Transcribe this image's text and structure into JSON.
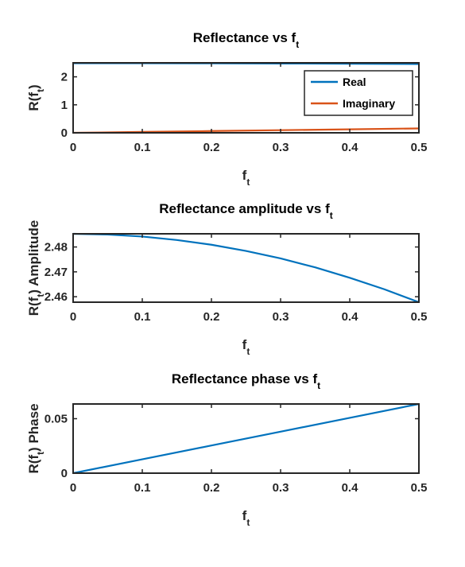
{
  "figure": {
    "background": "#ffffff",
    "axis_color": "#262626"
  },
  "chart_data": [
    {
      "type": "line",
      "title": "Reflectance vs f",
      "title_sub": "t",
      "xlabel": "f",
      "xlabel_sub": "t",
      "ylabel": "R(f",
      "ylabel_sub": "t",
      "ylabel_rest": ")",
      "xlim": [
        0,
        0.5
      ],
      "ylim": [
        0,
        2.5
      ],
      "xticks": [
        0,
        0.1,
        0.2,
        0.3,
        0.4,
        0.5
      ],
      "xtick_labels": [
        "0",
        "0.1",
        "0.2",
        "0.3",
        "0.4",
        "0.5"
      ],
      "yticks": [
        0,
        1,
        2
      ],
      "ytick_labels": [
        "0",
        "1",
        "2"
      ],
      "grid": false,
      "legend": {
        "position": "top-right"
      },
      "series": [
        {
          "name": "Real",
          "color": "#0072bd",
          "x": [
            0,
            0.1,
            0.2,
            0.3,
            0.4,
            0.5
          ],
          "y": [
            2.485,
            2.484,
            2.481,
            2.476,
            2.468,
            2.458
          ]
        },
        {
          "name": "Imaginary",
          "color": "#d95319",
          "x": [
            0,
            0.1,
            0.2,
            0.3,
            0.4,
            0.5
          ],
          "y": [
            0,
            0.031,
            0.063,
            0.094,
            0.125,
            0.157
          ]
        }
      ]
    },
    {
      "type": "line",
      "title": "Reflectance amplitude vs f",
      "title_sub": "t",
      "xlabel": "f",
      "xlabel_sub": "t",
      "ylabel": "R(f",
      "ylabel_sub": "t",
      "ylabel_rest": ") Amplitude",
      "xlim": [
        0,
        0.5
      ],
      "ylim": [
        2.4578,
        2.4853
      ],
      "xticks": [
        0,
        0.1,
        0.2,
        0.3,
        0.4,
        0.5
      ],
      "xtick_labels": [
        "0",
        "0.1",
        "0.2",
        "0.3",
        "0.4",
        "0.5"
      ],
      "yticks": [
        2.46,
        2.47,
        2.48
      ],
      "ytick_labels": [
        "2.46",
        "2.47",
        "2.48"
      ],
      "grid": false,
      "series": [
        {
          "color": "#0072bd",
          "x": [
            0,
            0.05,
            0.1,
            0.15,
            0.2,
            0.25,
            0.3,
            0.35,
            0.4,
            0.45,
            0.5
          ],
          "y": [
            2.4853,
            2.485,
            2.4842,
            2.4828,
            2.4809,
            2.4784,
            2.4754,
            2.4718,
            2.4676,
            2.463,
            2.4578
          ]
        }
      ]
    },
    {
      "type": "line",
      "title": "Reflectance phase vs f",
      "title_sub": "t",
      "xlabel": "f",
      "xlabel_sub": "t",
      "ylabel": "R(f",
      "ylabel_sub": "t",
      "ylabel_rest": ") Phase",
      "xlim": [
        0,
        0.5
      ],
      "ylim": [
        0,
        0.0635
      ],
      "xticks": [
        0,
        0.1,
        0.2,
        0.3,
        0.4,
        0.5
      ],
      "xtick_labels": [
        "0",
        "0.1",
        "0.2",
        "0.3",
        "0.4",
        "0.5"
      ],
      "yticks": [
        0,
        0.05
      ],
      "ytick_labels": [
        "0",
        "0.05"
      ],
      "grid": false,
      "series": [
        {
          "color": "#0072bd",
          "x": [
            0,
            0.1,
            0.2,
            0.3,
            0.4,
            0.5
          ],
          "y": [
            0,
            0.0127,
            0.0254,
            0.0381,
            0.0508,
            0.0635
          ]
        }
      ]
    }
  ]
}
